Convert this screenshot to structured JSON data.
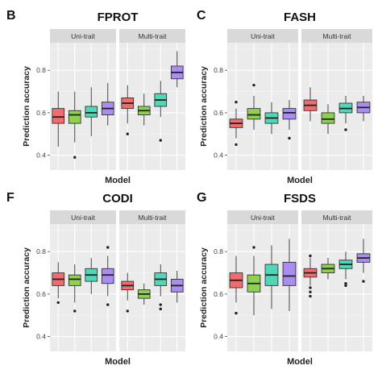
{
  "chart_data": [
    {
      "type": "boxplot",
      "panel_letter": "B",
      "title": "FPROT",
      "facets": [
        "Uni-trait",
        "Multi-trait"
      ],
      "ylabel": "Prediction accuracy",
      "xlabel": "Model",
      "ylim": [
        0.33,
        0.93
      ],
      "yticks": [
        "0.4",
        "0.6",
        "0.8"
      ],
      "colors": [
        "#f26b6f",
        "#8fd14f",
        "#4fd8b8",
        "#a98df0"
      ],
      "boxes": [
        {
          "facet": 0,
          "q1": 0.55,
          "median": 0.58,
          "q3": 0.62,
          "whisker_low": 0.44,
          "whisker_high": 0.7,
          "outliers": []
        },
        {
          "facet": 0,
          "q1": 0.55,
          "median": 0.59,
          "q3": 0.61,
          "whisker_low": 0.46,
          "whisker_high": 0.7,
          "outliers": [
            0.39
          ]
        },
        {
          "facet": 0,
          "q1": 0.58,
          "median": 0.6,
          "q3": 0.63,
          "whisker_low": 0.49,
          "whisker_high": 0.72,
          "outliers": []
        },
        {
          "facet": 0,
          "q1": 0.59,
          "median": 0.62,
          "q3": 0.65,
          "whisker_low": 0.54,
          "whisker_high": 0.74,
          "outliers": []
        },
        {
          "facet": 1,
          "q1": 0.62,
          "median": 0.645,
          "q3": 0.67,
          "whisker_low": 0.55,
          "whisker_high": 0.73,
          "outliers": [
            0.5
          ]
        },
        {
          "facet": 1,
          "q1": 0.59,
          "median": 0.61,
          "q3": 0.63,
          "whisker_low": 0.54,
          "whisker_high": 0.69,
          "outliers": []
        },
        {
          "facet": 1,
          "q1": 0.63,
          "median": 0.66,
          "q3": 0.69,
          "whisker_low": 0.58,
          "whisker_high": 0.75,
          "outliers": [
            0.47
          ]
        },
        {
          "facet": 1,
          "q1": 0.76,
          "median": 0.79,
          "q3": 0.82,
          "whisker_low": 0.72,
          "whisker_high": 0.89,
          "outliers": []
        }
      ]
    },
    {
      "type": "boxplot",
      "panel_letter": "C",
      "title": "FASH",
      "facets": [
        "Uni-trait",
        "Multi-trait"
      ],
      "ylabel": "Prediction accuracy",
      "xlabel": "Model",
      "ylim": [
        0.33,
        0.93
      ],
      "yticks": [
        "0.4",
        "0.6",
        "0.8"
      ],
      "colors": [
        "#f26b6f",
        "#8fd14f",
        "#4fd8b8",
        "#a98df0"
      ],
      "boxes": [
        {
          "facet": 0,
          "q1": 0.53,
          "median": 0.55,
          "q3": 0.57,
          "whisker_low": 0.48,
          "whisker_high": 0.62,
          "outliers": [
            0.45,
            0.65
          ]
        },
        {
          "facet": 0,
          "q1": 0.57,
          "median": 0.59,
          "q3": 0.62,
          "whisker_low": 0.52,
          "whisker_high": 0.68,
          "outliers": [
            0.73
          ]
        },
        {
          "facet": 0,
          "q1": 0.55,
          "median": 0.575,
          "q3": 0.6,
          "whisker_low": 0.5,
          "whisker_high": 0.65,
          "outliers": []
        },
        {
          "facet": 0,
          "q1": 0.57,
          "median": 0.6,
          "q3": 0.62,
          "whisker_low": 0.52,
          "whisker_high": 0.66,
          "outliers": [
            0.48
          ]
        },
        {
          "facet": 1,
          "q1": 0.61,
          "median": 0.635,
          "q3": 0.66,
          "whisker_low": 0.56,
          "whisker_high": 0.72,
          "outliers": []
        },
        {
          "facet": 1,
          "q1": 0.55,
          "median": 0.57,
          "q3": 0.6,
          "whisker_low": 0.5,
          "whisker_high": 0.64,
          "outliers": []
        },
        {
          "facet": 1,
          "q1": 0.6,
          "median": 0.62,
          "q3": 0.645,
          "whisker_low": 0.55,
          "whisker_high": 0.68,
          "outliers": [
            0.52
          ]
        },
        {
          "facet": 1,
          "q1": 0.6,
          "median": 0.625,
          "q3": 0.65,
          "whisker_low": 0.56,
          "whisker_high": 0.68,
          "outliers": []
        }
      ]
    },
    {
      "type": "boxplot",
      "panel_letter": "F",
      "title": "CODI",
      "facets": [
        "Uni-trait",
        "Multi-trait"
      ],
      "ylabel": "Prediction accuracy",
      "xlabel": "Model",
      "ylim": [
        0.33,
        0.93
      ],
      "yticks": [
        "0.4",
        "0.6",
        "0.8"
      ],
      "colors": [
        "#f26b6f",
        "#8fd14f",
        "#4fd8b8",
        "#a98df0"
      ],
      "boxes": [
        {
          "facet": 0,
          "q1": 0.64,
          "median": 0.67,
          "q3": 0.7,
          "whisker_low": 0.58,
          "whisker_high": 0.75,
          "outliers": [
            0.56
          ]
        },
        {
          "facet": 0,
          "q1": 0.64,
          "median": 0.67,
          "q3": 0.69,
          "whisker_low": 0.56,
          "whisker_high": 0.74,
          "outliers": [
            0.52
          ]
        },
        {
          "facet": 0,
          "q1": 0.66,
          "median": 0.69,
          "q3": 0.72,
          "whisker_low": 0.6,
          "whisker_high": 0.77,
          "outliers": []
        },
        {
          "facet": 0,
          "q1": 0.65,
          "median": 0.69,
          "q3": 0.72,
          "whisker_low": 0.59,
          "whisker_high": 0.78,
          "outliers": [
            0.55,
            0.82
          ]
        },
        {
          "facet": 1,
          "q1": 0.62,
          "median": 0.64,
          "q3": 0.66,
          "whisker_low": 0.57,
          "whisker_high": 0.7,
          "outliers": [
            0.52
          ]
        },
        {
          "facet": 1,
          "q1": 0.58,
          "median": 0.6,
          "q3": 0.62,
          "whisker_low": 0.55,
          "whisker_high": 0.65,
          "outliers": []
        },
        {
          "facet": 1,
          "q1": 0.64,
          "median": 0.67,
          "q3": 0.7,
          "whisker_low": 0.59,
          "whisker_high": 0.74,
          "outliers": [
            0.53,
            0.55
          ]
        },
        {
          "facet": 1,
          "q1": 0.61,
          "median": 0.64,
          "q3": 0.67,
          "whisker_low": 0.56,
          "whisker_high": 0.71,
          "outliers": []
        }
      ]
    },
    {
      "type": "boxplot",
      "panel_letter": "G",
      "title": "FSDS",
      "facets": [
        "Uni-trait",
        "Multi-trait"
      ],
      "ylabel": "Prediction accuracy",
      "xlabel": "Model",
      "ylim": [
        0.33,
        0.93
      ],
      "yticks": [
        "0.4",
        "0.6",
        "0.8"
      ],
      "colors": [
        "#f26b6f",
        "#8fd14f",
        "#4fd8b8",
        "#a98df0"
      ],
      "boxes": [
        {
          "facet": 0,
          "q1": 0.63,
          "median": 0.665,
          "q3": 0.7,
          "whisker_low": 0.56,
          "whisker_high": 0.78,
          "outliers": [
            0.51
          ]
        },
        {
          "facet": 0,
          "q1": 0.61,
          "median": 0.65,
          "q3": 0.69,
          "whisker_low": 0.5,
          "whisker_high": 0.78,
          "outliers": [
            0.82
          ]
        },
        {
          "facet": 0,
          "q1": 0.64,
          "median": 0.69,
          "q3": 0.74,
          "whisker_low": 0.53,
          "whisker_high": 0.83,
          "outliers": []
        },
        {
          "facet": 0,
          "q1": 0.64,
          "median": 0.685,
          "q3": 0.75,
          "whisker_low": 0.52,
          "whisker_high": 0.86,
          "outliers": []
        },
        {
          "facet": 1,
          "q1": 0.68,
          "median": 0.7,
          "q3": 0.72,
          "whisker_low": 0.64,
          "whisker_high": 0.77,
          "outliers": [
            0.59,
            0.61,
            0.63,
            0.78
          ]
        },
        {
          "facet": 1,
          "q1": 0.7,
          "median": 0.72,
          "q3": 0.74,
          "whisker_low": 0.67,
          "whisker_high": 0.77,
          "outliers": []
        },
        {
          "facet": 1,
          "q1": 0.72,
          "median": 0.74,
          "q3": 0.76,
          "whisker_low": 0.67,
          "whisker_high": 0.8,
          "outliers": [
            0.64,
            0.65
          ]
        },
        {
          "facet": 1,
          "q1": 0.75,
          "median": 0.77,
          "q3": 0.79,
          "whisker_low": 0.7,
          "whisker_high": 0.86,
          "outliers": [
            0.66
          ]
        }
      ]
    }
  ]
}
